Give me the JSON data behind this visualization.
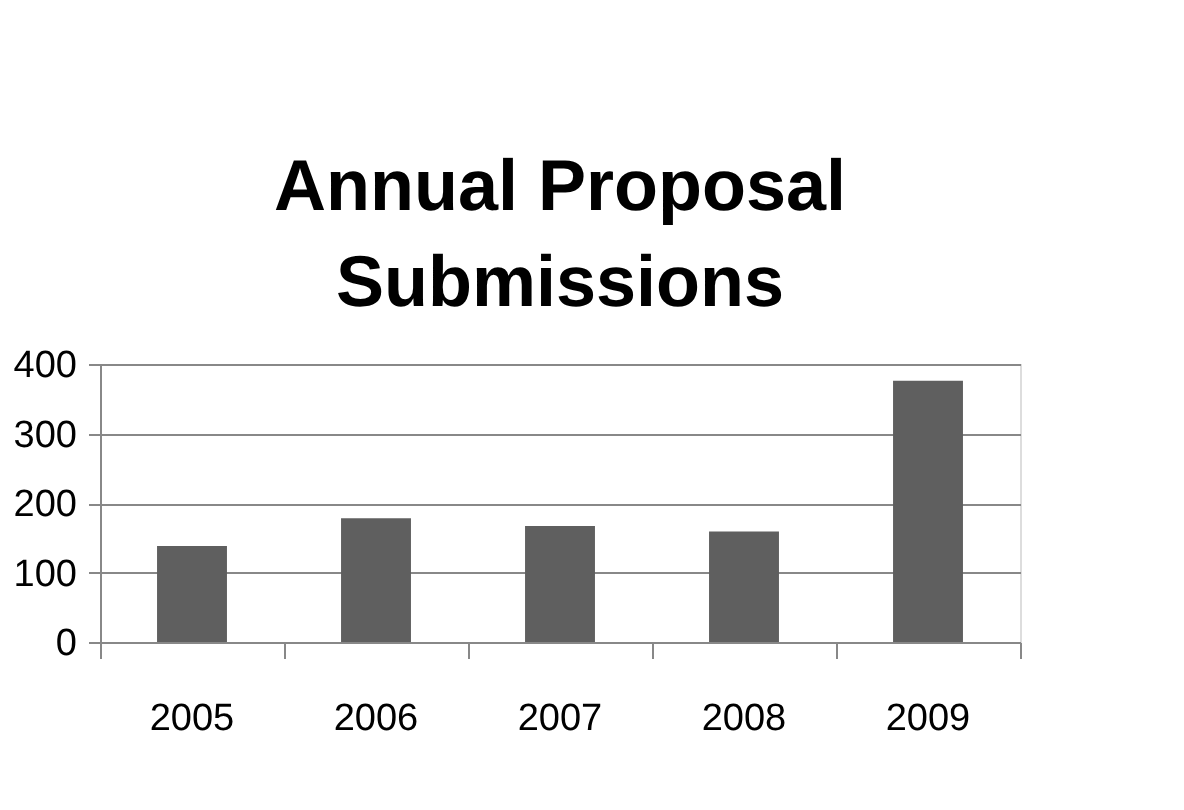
{
  "chart_data": {
    "type": "bar",
    "title": "Annual Proposal Submissions",
    "categories": [
      "2005",
      "2006",
      "2007",
      "2008",
      "2009"
    ],
    "values": [
      138,
      178,
      167,
      159,
      376
    ],
    "color": "#5f5f5f",
    "ylim": [
      0,
      400
    ],
    "yticks": [
      0,
      100,
      200,
      300,
      400
    ],
    "grid": "y"
  }
}
